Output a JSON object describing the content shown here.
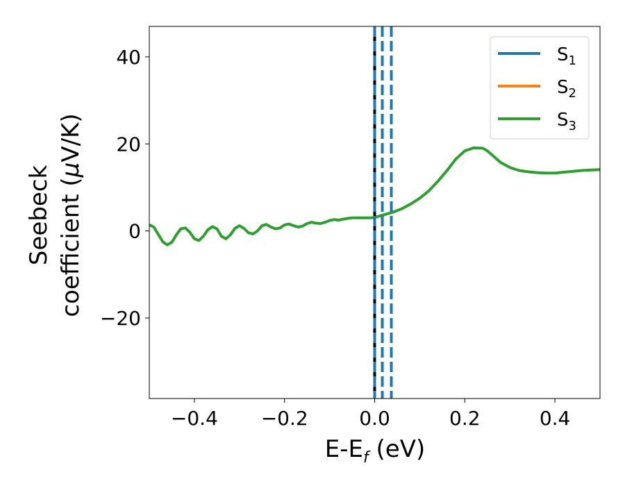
{
  "chart_data": {
    "type": "line",
    "xlabel": {
      "main": "E-E",
      "sub": "f",
      "tail": " (eV)"
    },
    "ylabel": {
      "line1": "Seebeck",
      "line2_pre": "coefficient  (",
      "mu": "μ",
      "line2_post": "V/K)"
    },
    "xlim": [
      -0.5,
      0.5
    ],
    "ylim": [
      -38.5,
      47
    ],
    "x_ticks": [
      -0.4,
      -0.2,
      0.0,
      0.2,
      0.4
    ],
    "x_tick_labels": [
      "−0.4",
      "−0.2",
      "0.0",
      "0.2",
      "0.4"
    ],
    "y_ticks": [
      -20,
      0,
      20,
      40
    ],
    "y_tick_labels": [
      "−20",
      "0",
      "20",
      "40"
    ],
    "grid": false,
    "legend_position": "top-right",
    "legend": [
      {
        "base": "S",
        "sub": "1",
        "color": "#1f77b4"
      },
      {
        "base": "S",
        "sub": "2",
        "color": "#ff7f0e"
      },
      {
        "base": "S",
        "sub": "3",
        "color": "#2ca02c"
      }
    ],
    "vertical_lines": [
      {
        "x": 0.0,
        "color": "#000000",
        "style": "solid"
      },
      {
        "x": 0.0,
        "color": "#1f77b4",
        "style": "dashed"
      },
      {
        "x": 0.017,
        "color": "#1f77b4",
        "style": "dashed"
      },
      {
        "x": 0.037,
        "color": "#1f77b4",
        "style": "dashed"
      }
    ],
    "series": [
      {
        "name": "S3",
        "color": "#2ca02c",
        "x": [
          -0.5,
          -0.49,
          -0.48,
          -0.47,
          -0.46,
          -0.45,
          -0.44,
          -0.43,
          -0.42,
          -0.41,
          -0.4,
          -0.39,
          -0.38,
          -0.37,
          -0.36,
          -0.35,
          -0.34,
          -0.33,
          -0.32,
          -0.31,
          -0.3,
          -0.29,
          -0.28,
          -0.27,
          -0.26,
          -0.25,
          -0.24,
          -0.23,
          -0.22,
          -0.21,
          -0.2,
          -0.19,
          -0.18,
          -0.17,
          -0.16,
          -0.15,
          -0.14,
          -0.13,
          -0.12,
          -0.11,
          -0.1,
          -0.09,
          -0.08,
          -0.07,
          -0.06,
          -0.05,
          -0.04,
          -0.03,
          -0.02,
          -0.01,
          0.0,
          0.01,
          0.02,
          0.03,
          0.04,
          0.05,
          0.06,
          0.08,
          0.1,
          0.12,
          0.14,
          0.16,
          0.18,
          0.2,
          0.22,
          0.24,
          0.25,
          0.26,
          0.27,
          0.28,
          0.3,
          0.32,
          0.34,
          0.36,
          0.38,
          0.4,
          0.42,
          0.44,
          0.46,
          0.48,
          0.5
        ],
        "y": [
          1.4,
          0.9,
          -0.8,
          -2.5,
          -3.2,
          -2.6,
          -0.9,
          0.5,
          0.7,
          -0.3,
          -1.8,
          -2.2,
          -1.2,
          0.3,
          1.0,
          0.5,
          -1.2,
          -1.8,
          -0.9,
          0.6,
          1.2,
          0.6,
          -0.4,
          -0.7,
          0.0,
          1.2,
          1.5,
          0.9,
          0.5,
          0.7,
          1.4,
          1.6,
          1.2,
          0.9,
          1.1,
          1.7,
          2.0,
          1.8,
          1.7,
          2.0,
          2.4,
          2.6,
          2.5,
          2.7,
          2.9,
          3.0,
          3.0,
          3.0,
          3.0,
          3.0,
          3.1,
          3.4,
          3.7,
          4.0,
          4.3,
          4.7,
          5.1,
          6.2,
          7.5,
          9.2,
          11.4,
          13.8,
          16.5,
          18.4,
          19.1,
          19.0,
          18.4,
          17.5,
          16.6,
          15.7,
          14.6,
          13.9,
          13.6,
          13.4,
          13.3,
          13.3,
          13.5,
          13.7,
          13.9,
          14.0,
          14.1
        ]
      }
    ]
  }
}
